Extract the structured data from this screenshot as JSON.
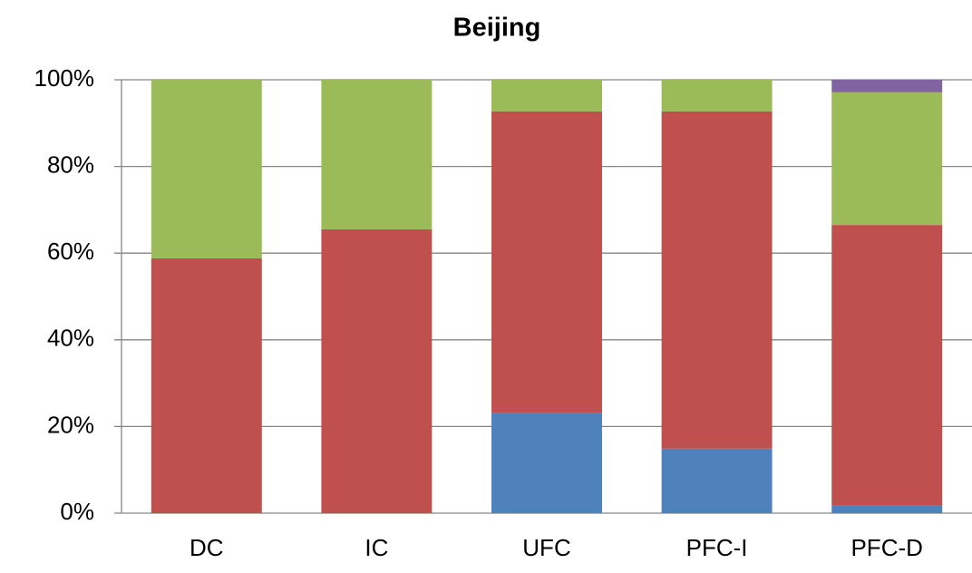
{
  "chart_data": {
    "type": "stacked-bar",
    "title": "Beijing",
    "categories": [
      "DC",
      "IC",
      "UFC",
      "PFC-I",
      "PFC-D"
    ],
    "series": [
      {
        "color": "#4f81bd",
        "values": [
          0,
          0,
          23.2,
          14.9,
          1.7
        ]
      },
      {
        "color": "#c0504d",
        "values": [
          58.8,
          65.5,
          69.5,
          77.8,
          64.8
        ]
      },
      {
        "color": "#9bbb59",
        "values": [
          41.2,
          34.5,
          7.3,
          7.3,
          30.6
        ]
      },
      {
        "color": "#8064a2",
        "values": [
          0,
          0,
          0,
          0,
          2.9
        ]
      }
    ],
    "ylim": [
      0,
      100
    ],
    "yticks": [
      {
        "value": 0,
        "label": "0%"
      },
      {
        "value": 20,
        "label": "20%"
      },
      {
        "value": 40,
        "label": "40%"
      },
      {
        "value": 60,
        "label": "60%"
      },
      {
        "value": 80,
        "label": "80%"
      },
      {
        "value": 100,
        "label": "100%"
      }
    ],
    "grid": true
  }
}
